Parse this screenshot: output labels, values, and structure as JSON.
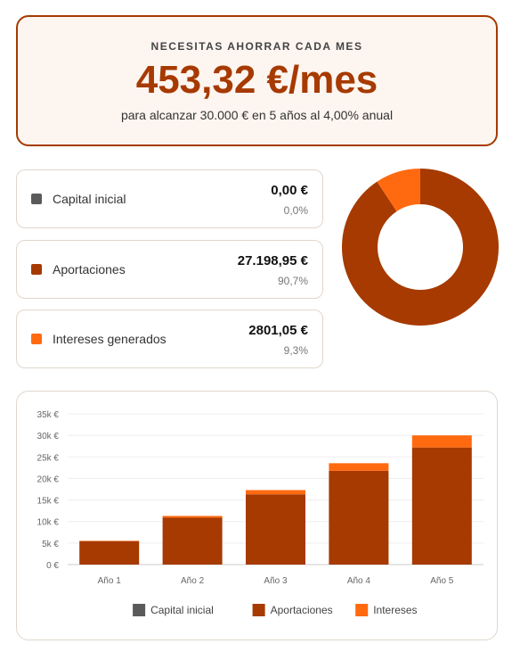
{
  "header": {
    "label": "NECESITAS AHORRAR CADA MES",
    "amount": "453,32 €/mes",
    "subtitle": "para alcanzar 30.000 € en 5 años al 4,00% anual"
  },
  "cards": [
    {
      "name": "Capital inicial",
      "amount": "0,00 €",
      "percent": "0,0%",
      "color": "#5a5a5a"
    },
    {
      "name": "Aportaciones",
      "amount": "27.198,95 €",
      "percent": "90,7%",
      "color": "#a63a00"
    },
    {
      "name": "Intereses generados",
      "amount": "2801,05 €",
      "percent": "9,3%",
      "color": "#ff6a10"
    }
  ],
  "chart_data": [
    {
      "type": "pie",
      "donut": true,
      "values": [
        0,
        90.7,
        9.3
      ],
      "colors": [
        "#5a5a5a",
        "#a63a00",
        "#ff6a10"
      ]
    },
    {
      "type": "bar",
      "stacked": true,
      "categories": [
        "Año 1",
        "Año 2",
        "Año 3",
        "Año 4",
        "Año 5"
      ],
      "series": [
        {
          "name": "Capital inicial",
          "color": "#5a5a5a",
          "values": [
            0,
            0,
            0,
            0,
            0
          ]
        },
        {
          "name": "Aportaciones",
          "color": "#a63a00",
          "values": [
            5439.84,
            10879.68,
            16319.52,
            21759.36,
            27198.95
          ]
        },
        {
          "name": "Intereses",
          "color": "#ff6a10",
          "values": [
            100,
            420,
            980,
            1780,
            2801.05
          ]
        }
      ],
      "ylim": [
        0,
        35000
      ],
      "yticks": [
        {
          "value": 0,
          "label": "0 €"
        },
        {
          "value": 5000,
          "label": "5k €"
        },
        {
          "value": 10000,
          "label": "10k €"
        },
        {
          "value": 15000,
          "label": "15k €"
        },
        {
          "value": 20000,
          "label": "20k €"
        },
        {
          "value": 25000,
          "label": "25k €"
        },
        {
          "value": 30000,
          "label": "30k €"
        },
        {
          "value": 35000,
          "label": "35k €"
        }
      ],
      "grid": true,
      "legend": "bottom"
    }
  ]
}
